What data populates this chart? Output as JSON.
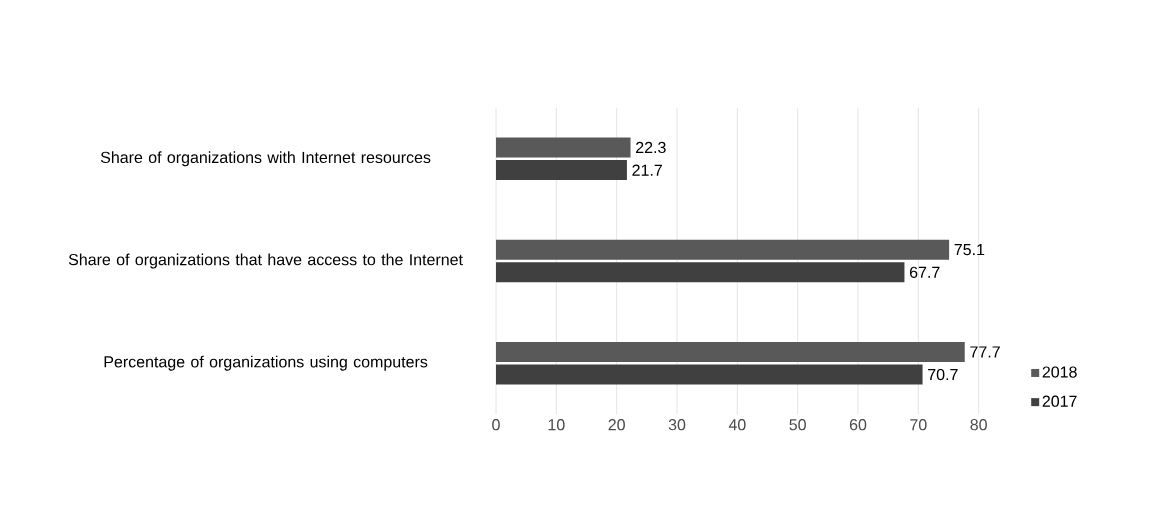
{
  "chart_data": {
    "type": "bar",
    "orientation": "horizontal",
    "categories": [
      "Share of organizations with Internet resources",
      "Share of organizations that have access to the Internet",
      "Percentage of organizations using computers"
    ],
    "series": [
      {
        "name": "2018",
        "color": "#595959",
        "values": [
          22.3,
          75.1,
          77.7
        ]
      },
      {
        "name": "2017",
        "color": "#404040",
        "values": [
          21.7,
          67.7,
          70.7
        ]
      }
    ],
    "xlim": [
      0,
      80
    ],
    "xticks": [
      0,
      10,
      20,
      30,
      40,
      50,
      60,
      70,
      80
    ],
    "grid": "x",
    "data_labels": true,
    "legend": "bottom right"
  }
}
